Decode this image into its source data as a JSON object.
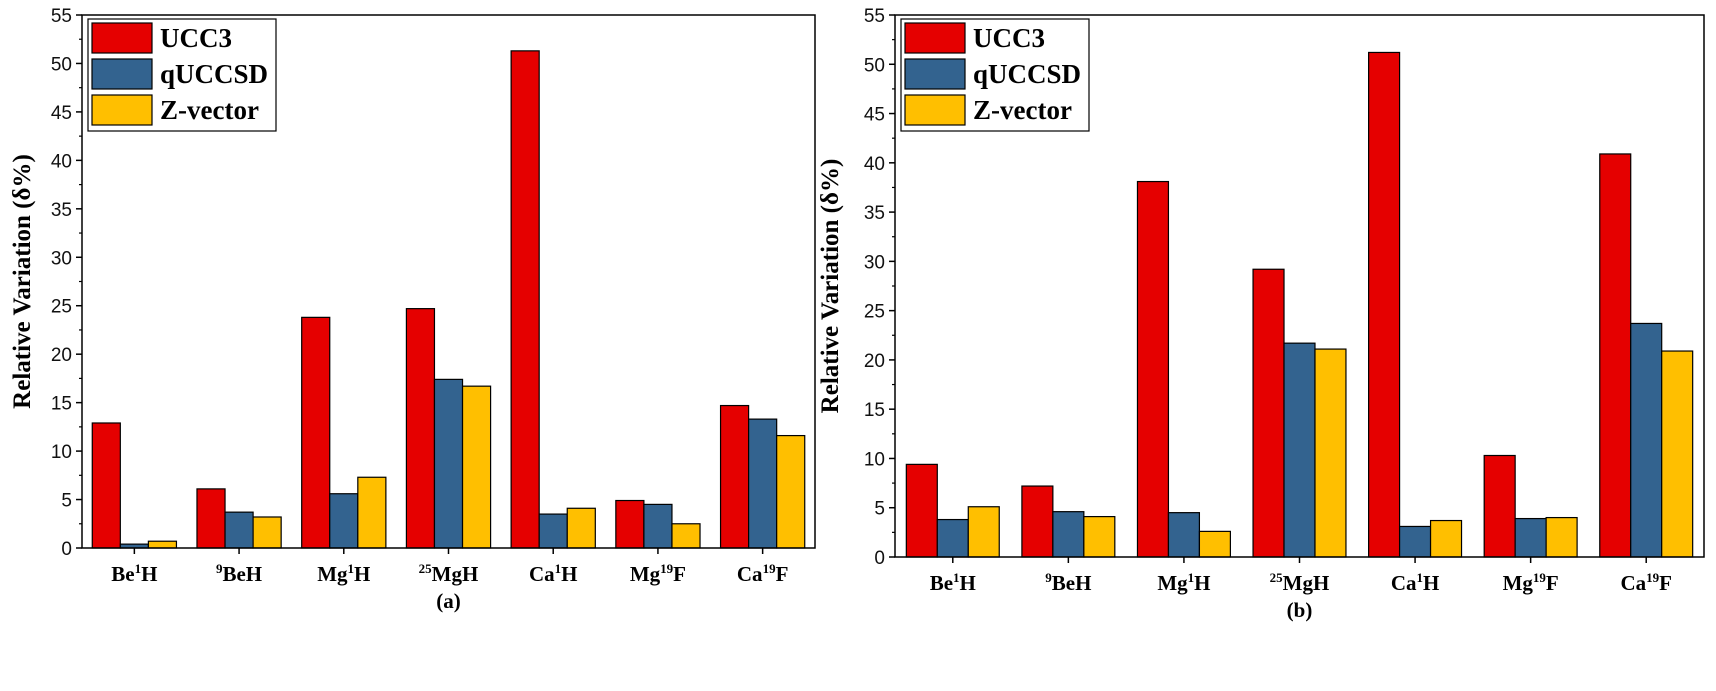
{
  "chart_data": [
    {
      "type": "bar",
      "panel_label": "(a)",
      "ylabel": "Relative Variation (δ%)",
      "ylim": [
        0,
        55
      ],
      "yticks": [
        0,
        5,
        10,
        15,
        20,
        25,
        30,
        35,
        40,
        45,
        50,
        55
      ],
      "grid": false,
      "legend_position": "top-left",
      "categories": [
        {
          "pre": "",
          "base": "Be",
          "sup": "1",
          "post": "H"
        },
        {
          "pre": "9",
          "base": "BeH",
          "sup": "",
          "post": ""
        },
        {
          "pre": "",
          "base": "Mg",
          "sup": "1",
          "post": "H"
        },
        {
          "pre": "25",
          "base": "MgH",
          "sup": "",
          "post": ""
        },
        {
          "pre": "",
          "base": "Ca",
          "sup": "1",
          "post": "H"
        },
        {
          "pre": "",
          "base": "Mg",
          "sup": "19",
          "post": "F"
        },
        {
          "pre": "",
          "base": "Ca",
          "sup": "19",
          "post": "F"
        }
      ],
      "series": [
        {
          "name": "UCC3",
          "color": "#e50000",
          "values": [
            12.9,
            6.1,
            23.8,
            24.7,
            51.3,
            4.9,
            14.7
          ]
        },
        {
          "name": "qUCCSD",
          "color": "#33638f",
          "values": [
            0.4,
            3.7,
            5.6,
            17.4,
            3.5,
            4.5,
            13.3
          ]
        },
        {
          "name": "Z-vector",
          "color": "#ffbf00",
          "values": [
            0.7,
            3.2,
            7.3,
            16.7,
            4.1,
            2.5,
            11.6
          ]
        }
      ]
    },
    {
      "type": "bar",
      "panel_label": "(b)",
      "ylabel": "Relative Variation (δ%)",
      "ylim": [
        0,
        55
      ],
      "yticks": [
        0,
        5,
        10,
        15,
        20,
        25,
        30,
        35,
        40,
        45,
        50,
        55
      ],
      "grid": false,
      "legend_position": "top-left",
      "categories": [
        {
          "pre": "",
          "base": "Be",
          "sup": "1",
          "post": "H"
        },
        {
          "pre": "9",
          "base": "BeH",
          "sup": "",
          "post": ""
        },
        {
          "pre": "",
          "base": "Mg",
          "sup": "1",
          "post": "H"
        },
        {
          "pre": "25",
          "base": "MgH",
          "sup": "",
          "post": ""
        },
        {
          "pre": "",
          "base": "Ca",
          "sup": "1",
          "post": "H"
        },
        {
          "pre": "",
          "base": "Mg",
          "sup": "19",
          "post": "F"
        },
        {
          "pre": "",
          "base": "Ca",
          "sup": "19",
          "post": "F"
        }
      ],
      "series": [
        {
          "name": "UCC3",
          "color": "#e50000",
          "values": [
            9.4,
            7.2,
            38.1,
            29.2,
            51.2,
            10.3,
            40.9
          ]
        },
        {
          "name": "qUCCSD",
          "color": "#33638f",
          "values": [
            3.8,
            4.6,
            4.5,
            21.7,
            3.1,
            3.9,
            23.7
          ]
        },
        {
          "name": "Z-vector",
          "color": "#ffbf00",
          "values": [
            5.1,
            4.1,
            2.6,
            21.1,
            3.7,
            4.0,
            20.9
          ]
        }
      ]
    }
  ]
}
